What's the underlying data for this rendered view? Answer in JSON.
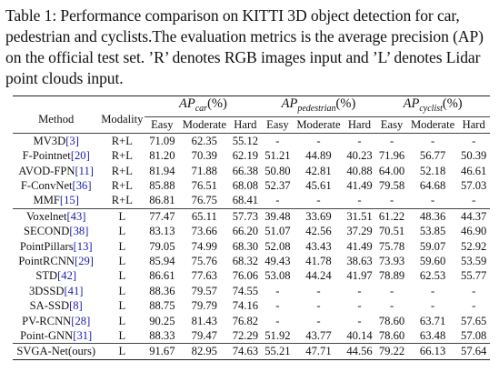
{
  "caption": "Table 1: Performance comparison on KITTI 3D object detection for car, pedestrian and cyclists.The evaluation metrics is the average precision (AP) on the official test set. ’R’ denotes RGB images input and ’L’ denotes Lidar point clouds input.",
  "header": {
    "method": "Method",
    "modality": "Modality",
    "groups": [
      {
        "base": "AP",
        "sub": "car",
        "suffix": "(%)"
      },
      {
        "base": "AP",
        "sub": "pedestrian",
        "suffix": "(%)"
      },
      {
        "base": "AP",
        "sub": "cyclist",
        "suffix": "(%)"
      }
    ],
    "sub_columns": [
      "Easy",
      "Moderate",
      "Hard",
      "Easy",
      "Moderate",
      "Hard",
      "Easy",
      "Moderate",
      "Hard"
    ]
  },
  "table": {
    "rgb_rows": [
      {
        "name": "MV3D",
        "ref": "[3]",
        "modality": "R+L",
        "values": [
          "71.09",
          "62.35",
          "55.12",
          "-",
          "-",
          "-",
          "-",
          "-",
          "-"
        ],
        "bold": []
      },
      {
        "name": "F-Pointnet",
        "ref": "[20]",
        "modality": "R+L",
        "values": [
          "81.20",
          "70.39",
          "62.19",
          "51.21",
          "44.89",
          "40.23",
          "71.96",
          "56.77",
          "50.39"
        ],
        "bold": []
      },
      {
        "name": "AVOD-FPN",
        "ref": "[11]",
        "modality": "R+L",
        "values": [
          "81.94",
          "71.88",
          "66.38",
          "50.80",
          "42.81",
          "40.88",
          "64.00",
          "52.18",
          "46.61"
        ],
        "bold": []
      },
      {
        "name": "F-ConvNet",
        "ref": "[36]",
        "modality": "R+L",
        "values": [
          "85.88",
          "76.51",
          "68.08",
          "52.37",
          "45.61",
          "41.49",
          "79.58",
          "64.68",
          "57.03"
        ],
        "bold": [
          6
        ]
      },
      {
        "name": "MMF",
        "ref": "[15]",
        "modality": "R+L",
        "values": [
          "86.81",
          "76.75",
          "68.41",
          "-",
          "-",
          "-",
          "-",
          "-",
          "-"
        ],
        "bold": []
      }
    ],
    "lidar_rows": [
      {
        "name": "Voxelnet",
        "ref": "[43]",
        "modality": "L",
        "values": [
          "77.47",
          "65.11",
          "57.73",
          "39.48",
          "33.69",
          "31.51",
          "61.22",
          "48.36",
          "44.37"
        ],
        "bold": []
      },
      {
        "name": "SECOND",
        "ref": "[38]",
        "modality": "L",
        "values": [
          "83.13",
          "73.66",
          "66.20",
          "51.07",
          "42.56",
          "37.29",
          "70.51",
          "53.85",
          "46.90"
        ],
        "bold": []
      },
      {
        "name": "PointPillars",
        "ref": "[13]",
        "modality": "L",
        "values": [
          "79.05",
          "74.99",
          "68.30",
          "52.08",
          "43.43",
          "41.49",
          "75.78",
          "59.07",
          "52.92"
        ],
        "bold": []
      },
      {
        "name": "PointRCNN",
        "ref": "[29]",
        "modality": "L",
        "values": [
          "85.94",
          "75.76",
          "68.32",
          "49.43",
          "41.78",
          "38.63",
          "73.93",
          "59.60",
          "53.59"
        ],
        "bold": []
      },
      {
        "name": "STD",
        "ref": "[42]",
        "modality": "L",
        "values": [
          "86.61",
          "77.63",
          "76.06",
          "53.08",
          "44.24",
          "41.97",
          "78.89",
          "62.53",
          "55.77"
        ],
        "bold": []
      },
      {
        "name": "3DSSD",
        "ref": "[41]",
        "modality": "L",
        "values": [
          "88.36",
          "79.57",
          "74.55",
          "-",
          "-",
          "-",
          "-",
          "-",
          "-"
        ],
        "bold": []
      },
      {
        "name": "SA-SSD",
        "ref": "[8]",
        "modality": "L",
        "values": [
          "88.75",
          "79.79",
          "74.16",
          "-",
          "-",
          "-",
          "-",
          "-",
          "-"
        ],
        "bold": []
      },
      {
        "name": "PV-RCNN",
        "ref": "[28]",
        "modality": "L",
        "values": [
          "90.25",
          "81.43",
          "76.82",
          "-",
          "-",
          "-",
          "78.60",
          "63.71",
          "57.65"
        ],
        "bold": [
          2,
          8
        ]
      },
      {
        "name": "Point-GNN",
        "ref": "[31]",
        "modality": "L",
        "values": [
          "88.33",
          "79.47",
          "72.29",
          "51.92",
          "43.77",
          "40.14",
          "78.60",
          "63.48",
          "57.08"
        ],
        "bold": []
      }
    ],
    "ours_row": {
      "name": "SVGA-Net(ours)",
      "ref": "",
      "modality": "L",
      "values": [
        "91.67",
        "82.95",
        "74.63",
        "55.21",
        "47.71",
        "44.56",
        "79.22",
        "66.13",
        "57.64"
      ],
      "bold": [
        0,
        1,
        3,
        4,
        5,
        7
      ]
    }
  }
}
